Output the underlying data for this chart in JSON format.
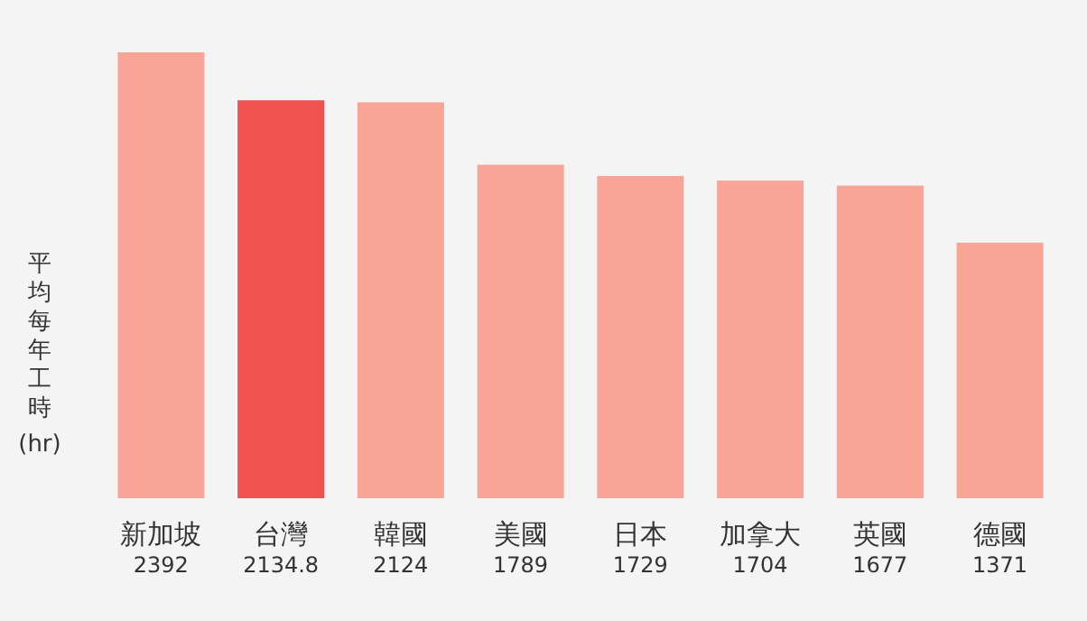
{
  "chart_data": {
    "type": "bar",
    "ylabel": "平均每年工時 (hr)",
    "categories": [
      "新加坡",
      "台灣",
      "韓國",
      "美國",
      "日本",
      "加拿大",
      "英國",
      "德國"
    ],
    "values": [
      2392,
      2134.8,
      2124,
      1789,
      1729,
      1704,
      1677,
      1371
    ],
    "colors": [
      "#f8a598",
      "#f0524f",
      "#f8a598",
      "#f8a598",
      "#f8a598",
      "#f8a598",
      "#f8a598",
      "#f8a598"
    ],
    "data_labels": true
  }
}
